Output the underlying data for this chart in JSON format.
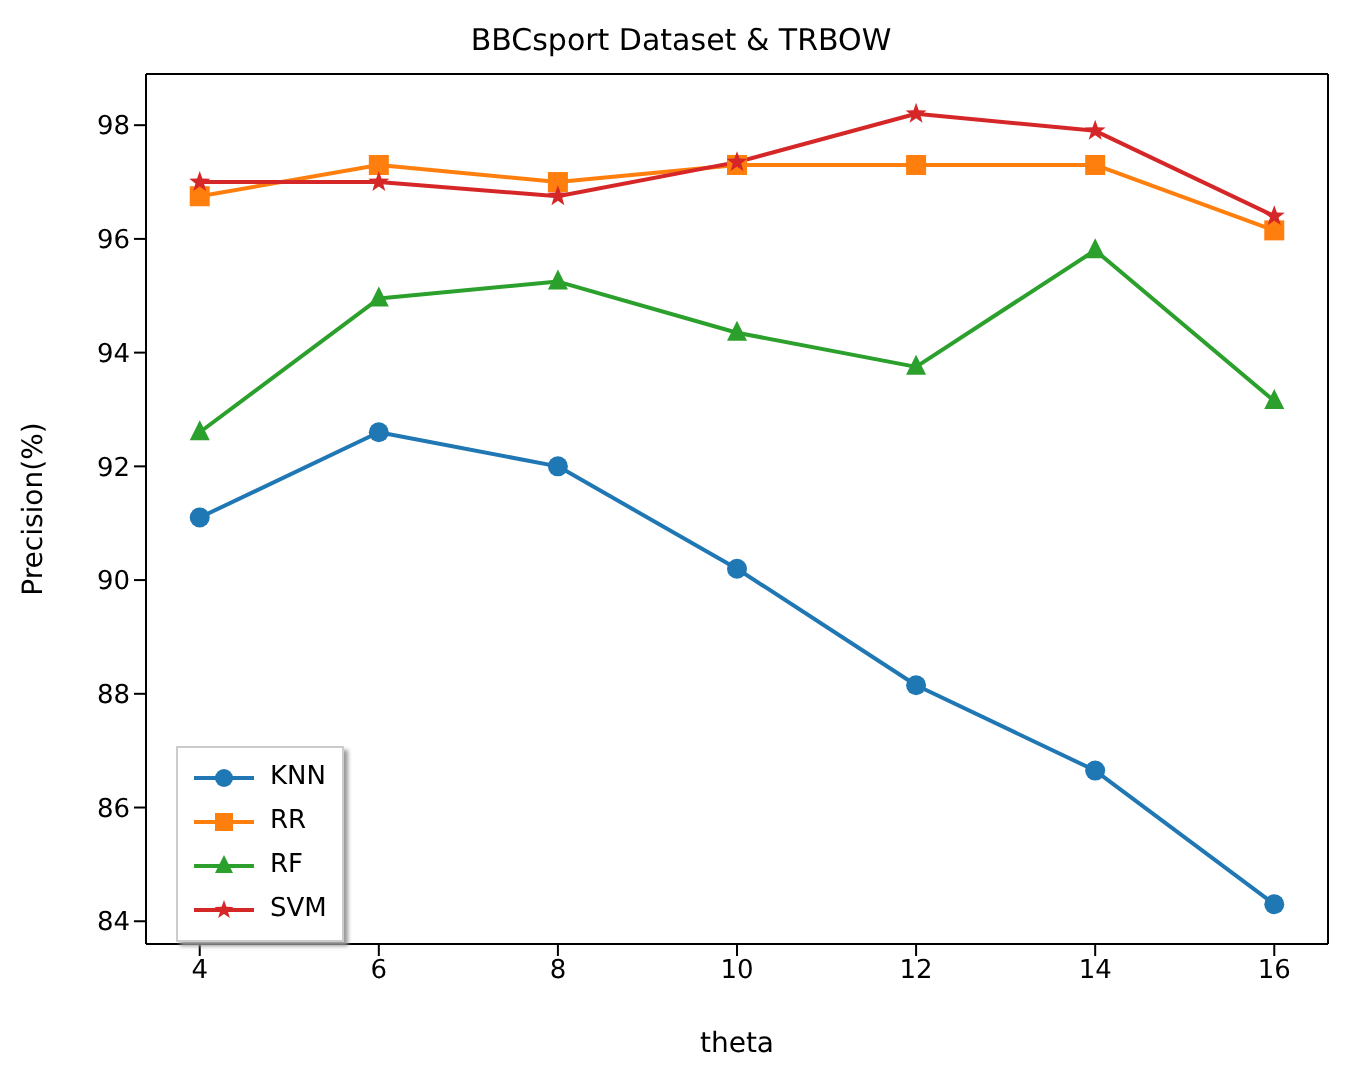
{
  "chart_data": {
    "type": "line",
    "title": "BBCsport Dataset & TRBOW",
    "xlabel": "theta",
    "ylabel": "Precision(%)",
    "x": [
      4,
      6,
      8,
      10,
      12,
      14,
      16
    ],
    "series": [
      {
        "name": "KNN",
        "color": "#1f77b4",
        "marker": "circle",
        "values": [
          91.1,
          92.6,
          92.0,
          90.2,
          88.15,
          86.65,
          84.3
        ]
      },
      {
        "name": "RR",
        "color": "#ff7f0e",
        "marker": "square",
        "values": [
          96.75,
          97.3,
          97.0,
          97.3,
          97.3,
          97.3,
          96.15
        ]
      },
      {
        "name": "RF",
        "color": "#2ca02c",
        "marker": "triangle",
        "values": [
          92.6,
          94.95,
          95.25,
          94.35,
          93.75,
          95.8,
          93.15
        ]
      },
      {
        "name": "SVM",
        "color": "#d62728",
        "marker": "star",
        "values": [
          97.0,
          97.0,
          96.75,
          97.35,
          98.2,
          97.9,
          96.4
        ]
      }
    ],
    "xlim": [
      3.4,
      16.6
    ],
    "xticks": [
      4,
      6,
      8,
      10,
      12,
      14,
      16
    ],
    "ylim": [
      83.6,
      98.9
    ],
    "yticks": [
      84,
      86,
      88,
      90,
      92,
      94,
      96,
      98
    ],
    "grid": false,
    "legend": "bottom left",
    "line_style": "solid"
  }
}
